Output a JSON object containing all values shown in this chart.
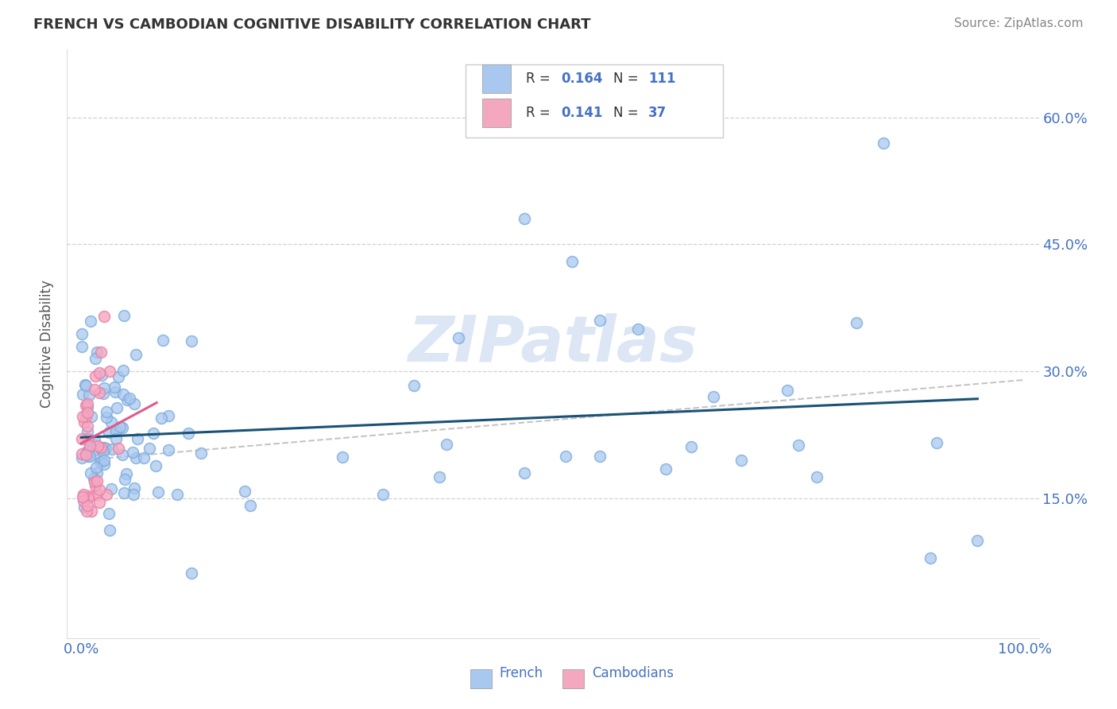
{
  "title": "FRENCH VS CAMBODIAN COGNITIVE DISABILITY CORRELATION CHART",
  "source": "Source: ZipAtlas.com",
  "ylabel": "Cognitive Disability",
  "french_R": 0.164,
  "french_N": 111,
  "cambodian_R": 0.141,
  "cambodian_N": 37,
  "french_color": "#a8c8f0",
  "cambodian_color": "#f4a8c0",
  "french_edge_color": "#7aaad8",
  "cambodian_edge_color": "#e880a8",
  "french_line_color": "#1a5276",
  "cambodian_line_color": "#e05a8a",
  "ref_line_color": "#bbbbbb",
  "label_color": "#4472c4",
  "watermark": "ZIPatlas",
  "watermark_color": "#dce6f4",
  "background_color": "#ffffff",
  "grid_color": "#cccccc",
  "title_color": "#333333",
  "source_color": "#888888"
}
